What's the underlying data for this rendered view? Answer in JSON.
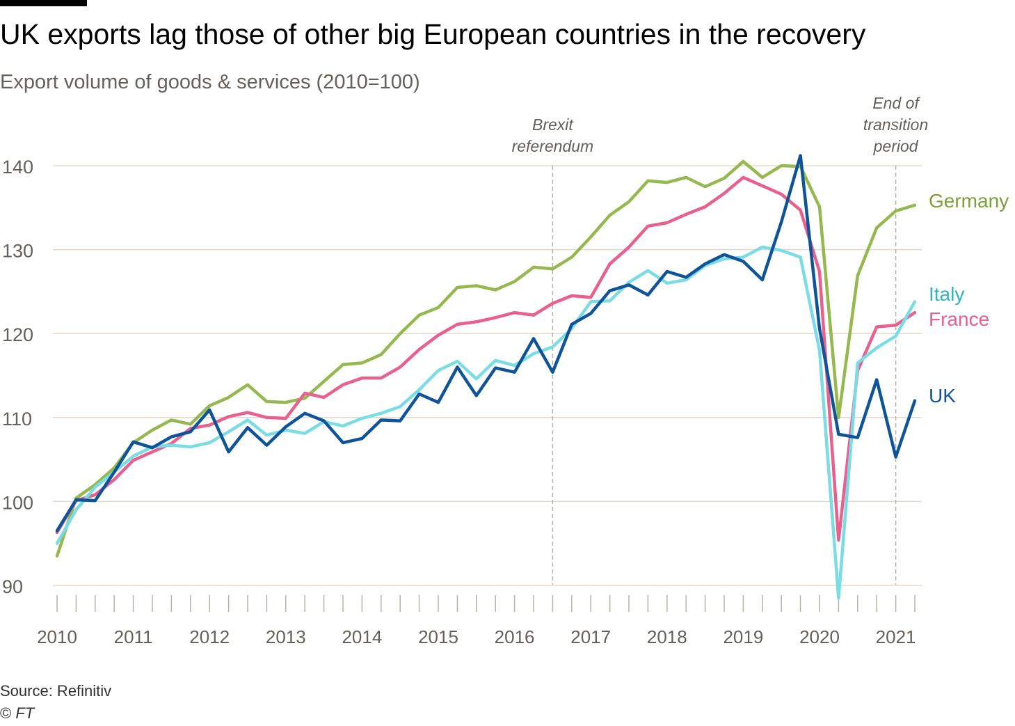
{
  "header": {
    "title": "UK exports lag those of other big European countries in the recovery",
    "subtitle": "Export volume of goods & services (2010=100)"
  },
  "footer": {
    "source": "Source: Refinitiv",
    "copyright_symbol": "©",
    "copyright_org": "FT"
  },
  "chart_data": {
    "type": "line",
    "ylim": [
      90,
      140
    ],
    "yticks": [
      90,
      100,
      110,
      120,
      130,
      140
    ],
    "x_range": [
      2010.0,
      2021.25
    ],
    "xticks": [
      2010,
      2011,
      2012,
      2013,
      2014,
      2015,
      2016,
      2017,
      2018,
      2019,
      2020,
      2021
    ],
    "grid": true,
    "legend_placement": "direct labels at right end of lines",
    "x_quarters": [
      "2010 Q1",
      "2010 Q2",
      "2010 Q3",
      "2010 Q4",
      "2011 Q1",
      "2011 Q2",
      "2011 Q3",
      "2011 Q4",
      "2012 Q1",
      "2012 Q2",
      "2012 Q3",
      "2012 Q4",
      "2013 Q1",
      "2013 Q2",
      "2013 Q3",
      "2013 Q4",
      "2014 Q1",
      "2014 Q2",
      "2014 Q3",
      "2014 Q4",
      "2015 Q1",
      "2015 Q2",
      "2015 Q3",
      "2015 Q4",
      "2016 Q1",
      "2016 Q2",
      "2016 Q3",
      "2016 Q4",
      "2017 Q1",
      "2017 Q2",
      "2017 Q3",
      "2017 Q4",
      "2018 Q1",
      "2018 Q2",
      "2018 Q3",
      "2018 Q4",
      "2019 Q1",
      "2019 Q2",
      "2019 Q3",
      "2019 Q4",
      "2020 Q1",
      "2020 Q2",
      "2020 Q3",
      "2020 Q4",
      "2021 Q1",
      "2021 Q2"
    ],
    "series": [
      {
        "name": "Germany",
        "color": "#96b94f",
        "values": [
          93.5,
          100.4,
          102.0,
          104.0,
          107.0,
          108.5,
          109.7,
          109.2,
          111.4,
          112.4,
          113.9,
          111.9,
          111.8,
          112.3,
          114.3,
          116.3,
          116.5,
          117.5,
          120.0,
          122.2,
          123.1,
          125.5,
          125.7,
          125.2,
          126.2,
          127.9,
          127.7,
          129.1,
          131.5,
          134.1,
          135.7,
          138.2,
          138.0,
          138.6,
          137.5,
          138.5,
          140.5,
          138.6,
          140.0,
          139.9,
          135.1,
          110.0,
          126.9,
          132.6,
          134.6,
          135.3
        ]
      },
      {
        "name": "France",
        "color": "#e9608e",
        "values": [
          96.3,
          100.1,
          100.8,
          102.6,
          104.9,
          105.9,
          106.9,
          108.7,
          109.1,
          110.1,
          110.6,
          110.0,
          109.9,
          112.9,
          112.4,
          113.9,
          114.7,
          114.7,
          116.0,
          118.1,
          119.8,
          121.1,
          121.4,
          121.9,
          122.5,
          122.2,
          123.6,
          124.5,
          124.3,
          128.3,
          130.3,
          132.8,
          133.2,
          134.2,
          135.1,
          136.7,
          138.6,
          137.6,
          136.6,
          134.7,
          127.4,
          95.4,
          115.6,
          120.8,
          121.0,
          122.5
        ]
      },
      {
        "name": "Italy",
        "color": "#7adce4",
        "values": [
          95.0,
          99.0,
          101.7,
          103.5,
          105.4,
          106.5,
          106.7,
          106.5,
          107.0,
          108.3,
          109.7,
          107.9,
          108.5,
          108.1,
          109.5,
          109.0,
          109.9,
          110.5,
          111.3,
          113.3,
          115.6,
          116.7,
          114.6,
          116.8,
          116.2,
          117.6,
          118.4,
          120.6,
          123.8,
          123.9,
          126.1,
          127.5,
          126.0,
          126.4,
          128.1,
          128.9,
          129.1,
          130.3,
          129.9,
          129.1,
          118.0,
          88.5,
          116.5,
          118.3,
          119.7,
          123.8
        ]
      },
      {
        "name": "UK",
        "color": "#0f5499",
        "values": [
          96.5,
          100.2,
          100.1,
          103.5,
          107.1,
          106.4,
          107.7,
          108.3,
          110.9,
          105.9,
          108.8,
          106.7,
          108.9,
          110.5,
          109.6,
          107.0,
          107.5,
          109.7,
          109.6,
          112.8,
          111.8,
          116.0,
          112.6,
          115.9,
          115.4,
          119.4,
          115.4,
          121.1,
          122.4,
          125.1,
          125.8,
          124.6,
          127.4,
          126.7,
          128.3,
          129.4,
          128.6,
          126.4,
          133.3,
          141.2,
          120.6,
          108.0,
          107.6,
          114.5,
          105.3,
          112.0
        ]
      }
    ],
    "annotations": [
      {
        "name": "Brexit referendum",
        "x": 2016.5,
        "lines": [
          "Brexit",
          "referendum"
        ]
      },
      {
        "name": "End of transition period",
        "x": 2021.0,
        "lines": [
          "End of",
          "transition",
          "period"
        ]
      }
    ]
  }
}
